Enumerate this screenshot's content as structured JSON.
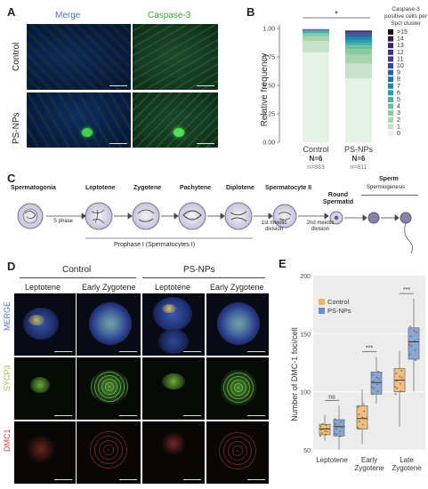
{
  "panels": {
    "A": "A",
    "B": "B",
    "C": "C",
    "D": "D",
    "E": "E"
  },
  "panelA": {
    "col_merge": "Merge",
    "col_caspase": "Caspase-3",
    "row_control": "Control",
    "row_psnps": "PS-NPs",
    "colors": {
      "merge_text": "#4f6fc4",
      "caspase_text": "#3da43d"
    }
  },
  "chart_data": [
    {
      "type": "bar",
      "stacked": true,
      "categories": [
        "Control",
        "PS-NPs"
      ],
      "category_sub": [
        {
          "n_label": "N=6",
          "n_small": "n=883"
        },
        {
          "n_label": "N=6",
          "n_small": "n=811"
        }
      ],
      "ylabel": "Relative frequency",
      "ylim": [
        0,
        1
      ],
      "yticks": [
        "0.00",
        "0.25",
        "0.50",
        "0.75",
        "1.00"
      ],
      "significance": "*",
      "legend_title": "Caspase-3 positive cells per Spcl cluster",
      "legend": [
        ">15",
        "14",
        "13",
        "12",
        "11",
        "10",
        "9",
        "8",
        "7",
        "6",
        "5",
        "4",
        "3",
        "2",
        "1",
        "0"
      ],
      "series": [
        {
          "name": "0",
          "color": "#e6f2e6",
          "values": [
            0.79,
            0.56
          ]
        },
        {
          "name": "1",
          "color": "#c6e3c9",
          "values": [
            0.1,
            0.13
          ]
        },
        {
          "name": "2",
          "color": "#a8d5ad",
          "values": [
            0.04,
            0.08
          ]
        },
        {
          "name": "3",
          "color": "#8ccaa2",
          "values": [
            0.02,
            0.05
          ]
        },
        {
          "name": "4",
          "color": "#6dbfa0",
          "values": [
            0.01,
            0.03
          ]
        },
        {
          "name": "5",
          "color": "#4bb0a6",
          "values": [
            0.01,
            0.025
          ]
        },
        {
          "name": "6",
          "color": "#2d9ea9",
          "values": [
            0.005,
            0.02
          ]
        },
        {
          "name": "7",
          "color": "#1f8aa8",
          "values": [
            0.005,
            0.02
          ]
        },
        {
          "name": "8",
          "color": "#2075a6",
          "values": [
            0.003,
            0.015
          ]
        },
        {
          "name": "9",
          "color": "#2760a0",
          "values": [
            0.003,
            0.012
          ]
        },
        {
          "name": "10",
          "color": "#304c97",
          "values": [
            0.002,
            0.01
          ]
        },
        {
          "name": "11",
          "color": "#3a3d8c",
          "values": [
            0.002,
            0.008
          ]
        },
        {
          "name": "12",
          "color": "#41307e",
          "values": [
            0.001,
            0.007
          ]
        },
        {
          "name": "13",
          "color": "#3d2668",
          "values": [
            0.001,
            0.006
          ]
        },
        {
          "name": "14",
          "color": "#2f1c4e",
          "values": [
            0.001,
            0.005
          ]
        },
        {
          "name": ">15",
          "color": "#141414",
          "values": [
            0.001,
            0.004
          ]
        }
      ]
    },
    {
      "type": "box",
      "categories": [
        "Leptotene",
        "Early Zygotene",
        "Late Zygotene"
      ],
      "category_lines": [
        [
          "Leptotene"
        ],
        [
          "Early",
          "Zygotene"
        ],
        [
          "Late",
          "Zygotene"
        ]
      ],
      "ylabel": "Number of DMC-1 foci/cell",
      "ylim": [
        50,
        200
      ],
      "yticks": [
        50,
        100,
        150,
        200
      ],
      "series": [
        {
          "name": "Control",
          "color": "#f2b35a",
          "boxes": [
            {
              "min": 58,
              "q1": 63,
              "median": 68,
              "q3": 72,
              "max": 80
            },
            {
              "min": 55,
              "q1": 68,
              "median": 77,
              "q3": 88,
              "max": 102
            },
            {
              "min": 70,
              "q1": 100,
              "median": 110,
              "q3": 120,
              "max": 135
            }
          ]
        },
        {
          "name": "PS-NPs",
          "color": "#6a8fd0",
          "boxes": [
            {
              "min": 50,
              "q1": 62,
              "median": 70,
              "q3": 76,
              "max": 88
            },
            {
              "min": 90,
              "q1": 98,
              "median": 108,
              "q3": 117,
              "max": 130
            },
            {
              "min": 100,
              "q1": 128,
              "median": 143,
              "q3": 155,
              "max": 180
            }
          ]
        }
      ],
      "significance": [
        "ns",
        "***",
        "***"
      ],
      "legend": [
        "Control",
        "PS-NPs"
      ]
    }
  ],
  "panelC": {
    "stages": [
      "Spermatogonia",
      "Leptotene",
      "Zygotene",
      "Pachytene",
      "Diplotene",
      "Spermatocyte II",
      "Round Spermatid",
      "Sperm"
    ],
    "s_phase": "S phase",
    "div1": "1st meiotic division",
    "div2": "2nd meiotic division",
    "prophase": "Prophase I (Spermatocytes I)",
    "spermiogenesis": "Spermiogenesis"
  },
  "panelD": {
    "group_control": "Control",
    "group_psnps": "PS-NPs",
    "cols": [
      "Leptotene",
      "Early Zygotene",
      "Leptotene",
      "Early Zygotene"
    ],
    "rows": [
      "MERGE",
      "SYCP3",
      "DMC1"
    ],
    "row_colors": [
      "#4a76c8",
      "#9ac23c",
      "#c8443a"
    ]
  }
}
